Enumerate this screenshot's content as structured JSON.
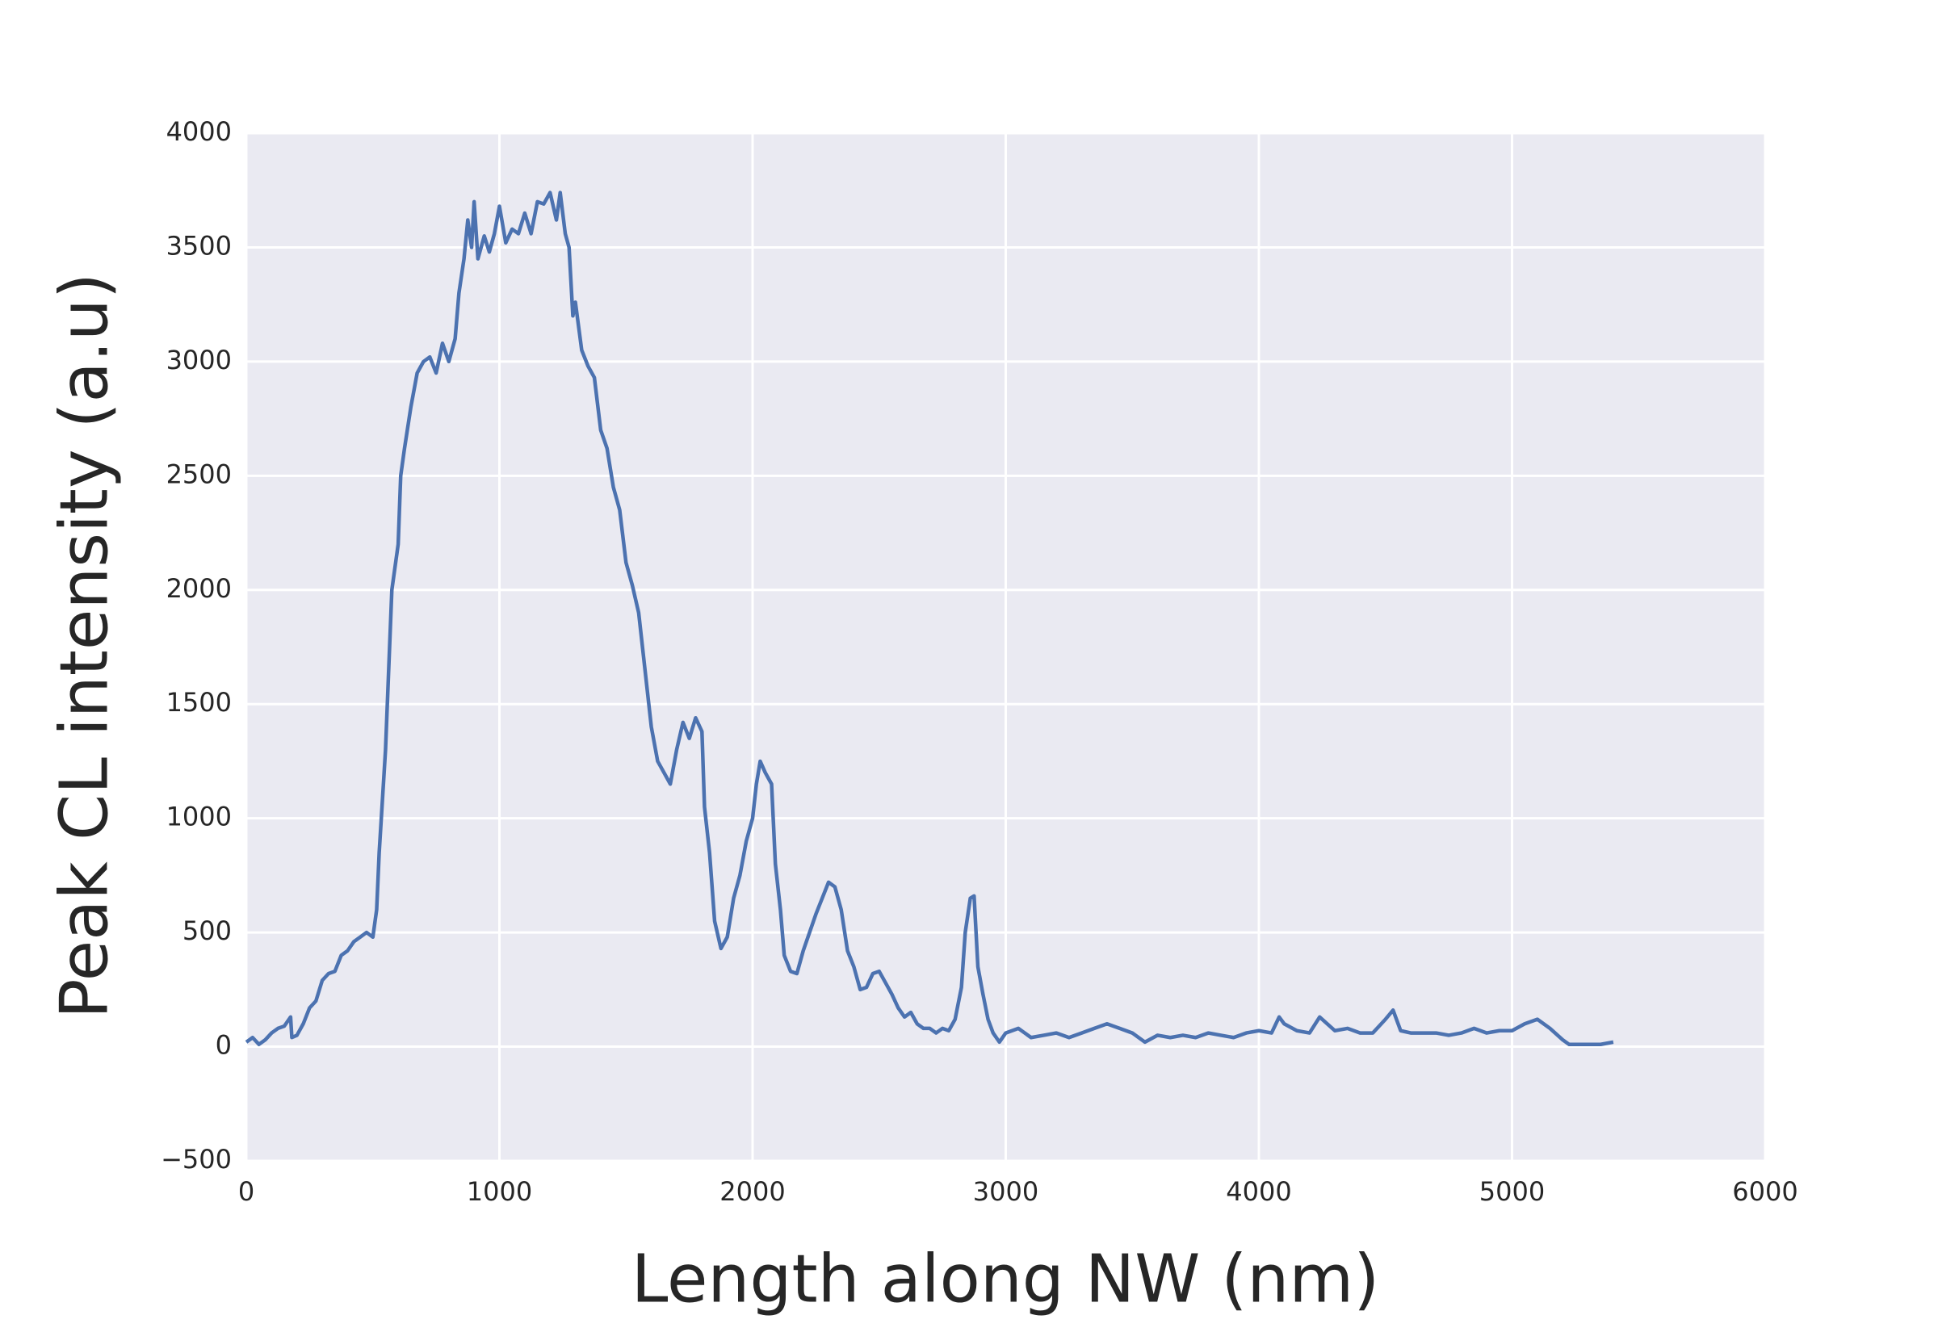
{
  "chart_data": {
    "type": "line",
    "x_label": "Length along NW (nm)",
    "y_label": "Peak CL intensity (a.u)",
    "x": [
      0,
      25,
      50,
      75,
      100,
      125,
      150,
      175,
      180,
      200,
      225,
      250,
      275,
      300,
      325,
      350,
      375,
      400,
      425,
      450,
      475,
      500,
      515,
      525,
      550,
      575,
      600,
      610,
      625,
      650,
      675,
      700,
      725,
      750,
      775,
      800,
      825,
      840,
      860,
      875,
      890,
      900,
      915,
      940,
      960,
      980,
      1000,
      1025,
      1050,
      1075,
      1100,
      1125,
      1150,
      1175,
      1200,
      1225,
      1240,
      1260,
      1275,
      1290,
      1300,
      1325,
      1350,
      1375,
      1400,
      1425,
      1450,
      1475,
      1500,
      1525,
      1550,
      1575,
      1600,
      1625,
      1650,
      1675,
      1700,
      1725,
      1750,
      1775,
      1800,
      1810,
      1830,
      1850,
      1875,
      1900,
      1925,
      1950,
      1975,
      2000,
      2015,
      2030,
      2050,
      2075,
      2090,
      2110,
      2125,
      2150,
      2175,
      2200,
      2225,
      2250,
      2275,
      2300,
      2325,
      2350,
      2375,
      2400,
      2425,
      2450,
      2475,
      2500,
      2525,
      2550,
      2575,
      2600,
      2625,
      2650,
      2675,
      2700,
      2725,
      2750,
      2775,
      2800,
      2825,
      2840,
      2860,
      2875,
      2890,
      2910,
      2930,
      2950,
      2975,
      3000,
      3050,
      3100,
      3150,
      3200,
      3250,
      3300,
      3350,
      3400,
      3450,
      3500,
      3550,
      3600,
      3650,
      3700,
      3750,
      3800,
      3850,
      3900,
      3950,
      4000,
      4050,
      4080,
      4100,
      4150,
      4200,
      4240,
      4300,
      4350,
      4400,
      4450,
      4500,
      4530,
      4560,
      4600,
      4650,
      4700,
      4750,
      4800,
      4850,
      4900,
      4950,
      5000,
      5050,
      5100,
      5150,
      5200,
      5225,
      5250,
      5300,
      5350,
      5400
    ],
    "series": [
      {
        "name": "Peak CL intensity",
        "color": "#4c72b0",
        "values": [
          20,
          40,
          10,
          30,
          60,
          80,
          90,
          130,
          40,
          50,
          100,
          170,
          200,
          290,
          320,
          330,
          400,
          420,
          460,
          480,
          500,
          480,
          600,
          850,
          1300,
          2000,
          2200,
          2500,
          2620,
          2800,
          2950,
          3000,
          3020,
          2950,
          3080,
          3000,
          3100,
          3300,
          3450,
          3620,
          3500,
          3700,
          3450,
          3550,
          3480,
          3560,
          3680,
          3520,
          3580,
          3560,
          3650,
          3560,
          3700,
          3690,
          3740,
          3620,
          3740,
          3560,
          3500,
          3200,
          3260,
          3050,
          2980,
          2930,
          2700,
          2620,
          2450,
          2350,
          2120,
          2020,
          1900,
          1650,
          1400,
          1250,
          1200,
          1150,
          1300,
          1420,
          1350,
          1440,
          1380,
          1050,
          850,
          550,
          430,
          480,
          650,
          750,
          900,
          1000,
          1150,
          1250,
          1200,
          1150,
          800,
          600,
          400,
          330,
          320,
          420,
          500,
          580,
          650,
          720,
          700,
          600,
          420,
          350,
          250,
          260,
          320,
          330,
          280,
          230,
          170,
          130,
          150,
          100,
          80,
          80,
          60,
          80,
          70,
          120,
          260,
          500,
          650,
          660,
          350,
          230,
          120,
          60,
          20,
          60,
          80,
          40,
          50,
          60,
          40,
          60,
          80,
          100,
          80,
          60,
          20,
          50,
          40,
          50,
          40,
          60,
          50,
          40,
          60,
          70,
          60,
          130,
          100,
          70,
          60,
          130,
          70,
          80,
          60,
          60,
          120,
          160,
          70,
          60,
          60,
          60,
          50,
          60,
          80,
          60,
          70,
          70,
          100,
          120,
          80,
          30,
          10,
          10,
          10,
          10,
          20
        ]
      }
    ],
    "xlim": [
      0,
      6000
    ],
    "xticks": [
      0,
      1000,
      2000,
      3000,
      4000,
      5000,
      6000
    ],
    "ylim": [
      -500,
      4000
    ],
    "yticks": [
      {
        "value": -500,
        "label": "−500"
      },
      0,
      500,
      1000,
      1500,
      2000,
      2500,
      3000,
      3500,
      4000
    ],
    "grid": true
  }
}
